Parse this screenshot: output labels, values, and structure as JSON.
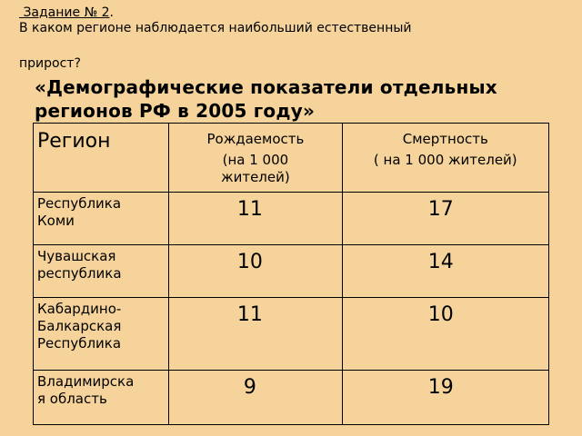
{
  "task": {
    "title": " Задание № 2",
    "title_suffix": ".",
    "question_line1": "В каком регионе наблюдается наибольший естественный",
    "question_line2": "прирост?"
  },
  "table_title": {
    "line1": "«Демографические показатели отдельных",
    "line2": "регионов РФ в 2005 году»"
  },
  "table": {
    "headers": {
      "region": "Регион",
      "birth_line1": "Рождаемость",
      "birth_line2": "(на 1 000",
      "birth_line3": "жителей)",
      "death_line1": "Смертность",
      "death_line2": "( на 1 000 жителей)"
    },
    "rows": [
      {
        "region_line1": "Республика",
        "region_line2": "Коми",
        "region_line3": "",
        "birth": "11",
        "death": "17"
      },
      {
        "region_line1": "Чувашская",
        "region_line2": "республика",
        "region_line3": "",
        "birth": "10",
        "death": "14"
      },
      {
        "region_line1": "Кабардино-",
        "region_line2": "Балкарская",
        "region_line3": "Республика",
        "birth": "11",
        "death": "10"
      },
      {
        "region_line1": "Владимирска",
        "region_line2": "я область",
        "region_line3": "",
        "birth": "9",
        "death": "19"
      }
    ]
  },
  "colors": {
    "background": "#f5d39a",
    "text": "#000000",
    "border": "#000000"
  }
}
